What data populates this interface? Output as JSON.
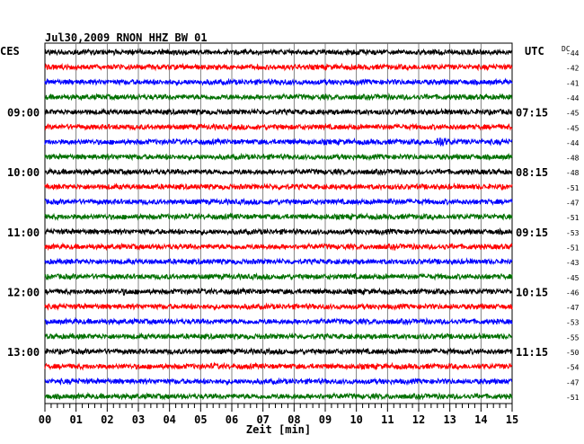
{
  "chart_data": {
    "type": "line",
    "title": "Jul30,2009   RNON HHZ BW 01",
    "left_timezone_label": "CES",
    "right_timezone_label": "UTC",
    "dc_label": "DC",
    "xlabel": "Zeit [min]",
    "xlim": [
      0,
      15
    ],
    "x_ticks": [
      "00",
      "01",
      "02",
      "03",
      "04",
      "05",
      "06",
      "07",
      "08",
      "09",
      "10",
      "11",
      "12",
      "13",
      "14",
      "15"
    ],
    "grid": true,
    "left_hour_labels": [
      {
        "trace_index": 4,
        "label": "09:00"
      },
      {
        "trace_index": 8,
        "label": "10:00"
      },
      {
        "trace_index": 12,
        "label": "11:00"
      },
      {
        "trace_index": 16,
        "label": "12:00"
      },
      {
        "trace_index": 20,
        "label": "13:00"
      }
    ],
    "right_hour_labels": [
      {
        "trace_index": 4,
        "label": "07:15"
      },
      {
        "trace_index": 8,
        "label": "08:15"
      },
      {
        "trace_index": 12,
        "label": "09:15"
      },
      {
        "trace_index": 16,
        "label": "10:15"
      },
      {
        "trace_index": 20,
        "label": "11:15"
      }
    ],
    "trace_colors": [
      "#000000",
      "#ff0000",
      "#0000ff",
      "#007000"
    ],
    "dc_offsets": [
      -44,
      -42,
      -41,
      -44,
      -45,
      -45,
      -44,
      -48,
      -48,
      -51,
      -47,
      -51,
      -53,
      -51,
      -43,
      -45,
      -46,
      -47,
      -53,
      -55,
      -50,
      -54,
      -47,
      -51
    ],
    "events": [
      {
        "trace_index": 6,
        "minute": 12.6,
        "amplitude": 3.2
      },
      {
        "trace_index": 2,
        "minute": 7.5,
        "amplitude": 1.4
      },
      {
        "trace_index": 10,
        "minute": 11.0,
        "amplitude": 1.4
      },
      {
        "trace_index": 9,
        "minute": 7.5,
        "amplitude": 1.3
      },
      {
        "trace_index": 16,
        "minute": 2.5,
        "amplitude": 1.5
      },
      {
        "trace_index": 21,
        "minute": 5.4,
        "amplitude": 1.3
      },
      {
        "trace_index": 22,
        "minute": 0.8,
        "amplitude": 1.3
      },
      {
        "trace_index": 23,
        "minute": 8.8,
        "amplitude": 1.2
      },
      {
        "trace_index": 13,
        "minute": 11.2,
        "amplitude": 1.2
      },
      {
        "trace_index": 13,
        "minute": 12.8,
        "amplitude": 1.2
      },
      {
        "trace_index": 4,
        "minute": 12.9,
        "amplitude": 1.2
      },
      {
        "trace_index": 20,
        "minute": 13.4,
        "amplitude": 1.2
      }
    ]
  }
}
